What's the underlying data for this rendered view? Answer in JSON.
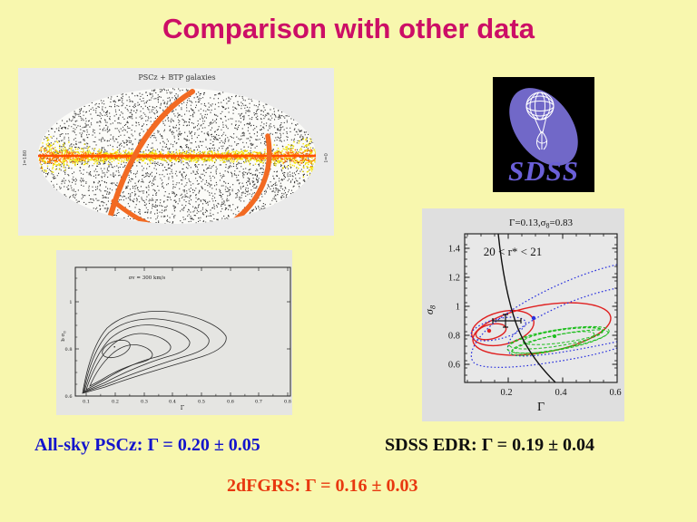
{
  "slide": {
    "title": "Comparison with other data",
    "title_color": "#CC0E66",
    "background_color": "#F8F7AE"
  },
  "sky_map": {
    "title": "PSCz + BTP galaxies",
    "left_edge_label": "l=180",
    "right_edge_label": "l=0",
    "panel_color": "#EAEAEA",
    "sphere_color": "#FBFBF8",
    "galaxy_dot_color": "#1A1A1A",
    "band_yellow": "#F2E205",
    "band_orange": "#FF6A00",
    "equator_color": "#FF4E00",
    "arc_color": "#F26A22"
  },
  "sdss_logo": {
    "text": "SDSS",
    "background": "#000000",
    "ellipse_color": "#7168C8",
    "wireframe_color": "#FFFFFF",
    "text_color": "#6A5FD8"
  },
  "pscz_likelihood_plot": {
    "annotation": "σv = 300 km/s",
    "xlabel": "Γ",
    "ylabel_parts": [
      "b σ",
      "8"
    ],
    "x_tick_labels": [
      "0.1",
      "0.2",
      "0.3",
      "0.4",
      "0.5",
      "0.6",
      "0.7",
      "0.8"
    ],
    "y_tick_labels": [
      "1",
      "0.8",
      "0.6"
    ],
    "panel_color": "#E5E5E2",
    "contour_color": "#2B2B2B"
  },
  "sdss_contour_plot": {
    "title_parts": [
      "Γ=0.13,σ",
      "8",
      "=0.83"
    ],
    "annotation": "20 < r* < 21",
    "xlabel": "Γ",
    "ylabel_parts": [
      "σ",
      "8"
    ],
    "x_tick_labels": [
      "0.2",
      "0.4",
      "0.6"
    ],
    "y_tick_labels": [
      "1.4",
      "1.2",
      "1",
      "0.8",
      "0.6"
    ],
    "panel_color": "#DFDFDF",
    "plot_bg": "#E8E8E8",
    "colors": {
      "red": "#E02020",
      "blue": "#2830DE",
      "green": "#1DBE1D",
      "black": "#111111"
    }
  },
  "results": [
    {
      "name": "All-sky PSCz",
      "text": "All-sky PSCz: Γ = 0.20 ± 0.05",
      "color": "#1414CC"
    },
    {
      "name": "SDSS EDR",
      "text": "SDSS EDR: Γ = 0.19 ± 0.04",
      "color": "#101010"
    },
    {
      "name": "2dFGRS",
      "text": "2dFGRS: Γ = 0.16 ± 0.03",
      "color": "#E8380F"
    }
  ],
  "chart_data": [
    {
      "type": "scatter",
      "title": "PSCz + BTP galaxies",
      "description": "All-sky Aitoff projection of galaxy positions (black speckle), galactic plane masked by noisy yellow/orange band with orange equator line at b=0, orange great-circle arcs, edge labels l=180 (left) and l=0 (right)."
    },
    {
      "type": "contour",
      "title": "σv = 300 km/s",
      "xlabel": "Γ",
      "ylabel": "b σ8",
      "x_ticks": [
        0.1,
        0.2,
        0.3,
        0.4,
        0.5,
        0.6,
        0.7,
        0.8
      ],
      "y_ticks": [
        1.0,
        0.8,
        0.6
      ],
      "levels": 6,
      "peak": {
        "gamma": 0.2,
        "b_sigma8": 0.8
      },
      "description": "Nested black likelihood contours, comet-shaped, tails converging to lower-left corner, outermost extending to Γ≈0.6."
    },
    {
      "type": "contour",
      "title": "Γ=0.13,σ8=0.83",
      "annotation": "20 < r* < 21",
      "xlabel": "Γ",
      "ylabel": "σ8",
      "xlim": [
        0.03,
        0.6
      ],
      "ylim": [
        0.5,
        1.5
      ],
      "series": [
        {
          "name": "red solid contours",
          "best_fit": {
            "gamma": 0.13,
            "sigma8": 0.83
          }
        },
        {
          "name": "blue dotted contours",
          "best_fit": {
            "gamma": 0.3,
            "sigma8": 0.92
          }
        },
        {
          "name": "green dashed contours",
          "best_fit": {
            "gamma": 0.37,
            "sigma8": 0.8
          }
        },
        {
          "name": "black constraint curve with error cross",
          "cross_at": {
            "gamma": 0.19,
            "sigma8": 0.9
          }
        }
      ]
    }
  ]
}
